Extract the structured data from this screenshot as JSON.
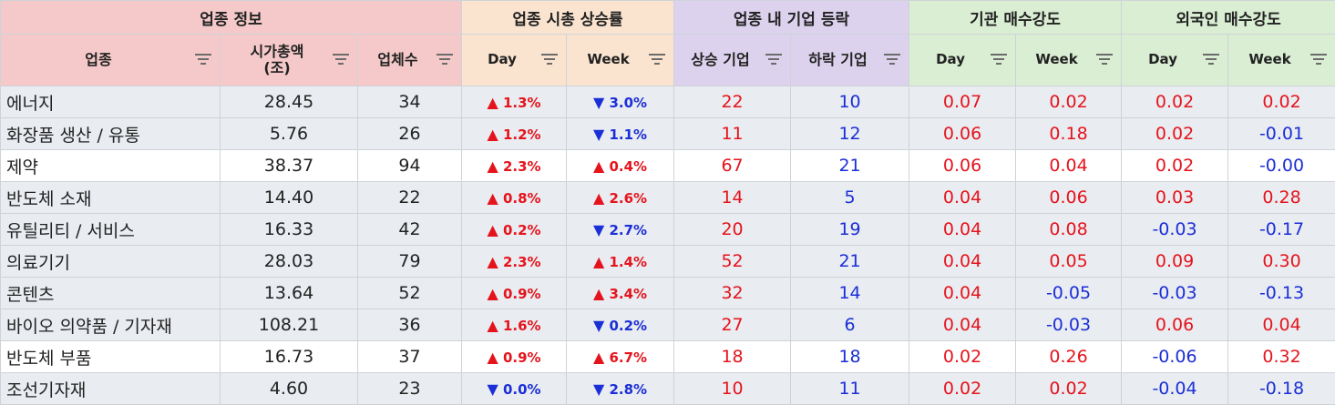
{
  "groups": {
    "sector_info": "업종 정보",
    "market_cap_change": "업종 시총 상승률",
    "company_moves": "업종 내 기업 등락",
    "inst_strength": "기관 매수강도",
    "foreign_strength": "외국인 매수강도"
  },
  "columns": {
    "sector": "업종",
    "market_cap": "시가총액\n(조)",
    "company_count": "업체수",
    "day": "Day",
    "week": "Week",
    "rising": "상승 기업",
    "falling": "하락 기업"
  },
  "symbols": {
    "up": "▲",
    "down": "▼"
  },
  "colors": {
    "group_info": "#f5c9c9",
    "group_cap": "#fbe4cf",
    "group_moves": "#dcd2ee",
    "group_strength": "#daeed4",
    "up": "#e5141c",
    "down": "#1b2fd6"
  },
  "rows": [
    {
      "name": "에너지",
      "cap": "28.45",
      "count": "34",
      "day_dir": "up",
      "day": "1.3%",
      "week_dir": "down",
      "week": "3.0%",
      "rise": "22",
      "fall": "10",
      "inst_day": "0.07",
      "inst_week": "0.02",
      "for_day": "0.02",
      "for_week": "0.02",
      "shade": true
    },
    {
      "name": "화장품 생산 / 유통",
      "cap": "5.76",
      "count": "26",
      "day_dir": "up",
      "day": "1.2%",
      "week_dir": "down",
      "week": "1.1%",
      "rise": "11",
      "fall": "12",
      "inst_day": "0.06",
      "inst_week": "0.18",
      "for_day": "0.02",
      "for_week": "-0.01",
      "shade": true
    },
    {
      "name": "제약",
      "cap": "38.37",
      "count": "94",
      "day_dir": "up",
      "day": "2.3%",
      "week_dir": "up",
      "week": "0.4%",
      "rise": "67",
      "fall": "21",
      "inst_day": "0.06",
      "inst_week": "0.04",
      "for_day": "0.02",
      "for_week": "-0.00",
      "shade": false
    },
    {
      "name": "반도체 소재",
      "cap": "14.40",
      "count": "22",
      "day_dir": "up",
      "day": "0.8%",
      "week_dir": "up",
      "week": "2.6%",
      "rise": "14",
      "fall": "5",
      "inst_day": "0.04",
      "inst_week": "0.06",
      "for_day": "0.03",
      "for_week": "0.28",
      "shade": true
    },
    {
      "name": "유틸리티 / 서비스",
      "cap": "16.33",
      "count": "42",
      "day_dir": "up",
      "day": "0.2%",
      "week_dir": "down",
      "week": "2.7%",
      "rise": "20",
      "fall": "19",
      "inst_day": "0.04",
      "inst_week": "0.08",
      "for_day": "-0.03",
      "for_week": "-0.17",
      "shade": true
    },
    {
      "name": "의료기기",
      "cap": "28.03",
      "count": "79",
      "day_dir": "up",
      "day": "2.3%",
      "week_dir": "up",
      "week": "1.4%",
      "rise": "52",
      "fall": "21",
      "inst_day": "0.04",
      "inst_week": "0.05",
      "for_day": "0.09",
      "for_week": "0.30",
      "shade": true
    },
    {
      "name": "콘텐츠",
      "cap": "13.64",
      "count": "52",
      "day_dir": "up",
      "day": "0.9%",
      "week_dir": "up",
      "week": "3.4%",
      "rise": "32",
      "fall": "14",
      "inst_day": "0.04",
      "inst_week": "-0.05",
      "for_day": "-0.03",
      "for_week": "-0.13",
      "shade": true
    },
    {
      "name": "바이오 의약품 / 기자재",
      "cap": "108.21",
      "count": "36",
      "day_dir": "up",
      "day": "1.6%",
      "week_dir": "down",
      "week": "0.2%",
      "rise": "27",
      "fall": "6",
      "inst_day": "0.04",
      "inst_week": "-0.03",
      "for_day": "0.06",
      "for_week": "0.04",
      "shade": true
    },
    {
      "name": "반도체 부품",
      "cap": "16.73",
      "count": "37",
      "day_dir": "up",
      "day": "0.9%",
      "week_dir": "up",
      "week": "6.7%",
      "rise": "18",
      "fall": "18",
      "inst_day": "0.02",
      "inst_week": "0.26",
      "for_day": "-0.06",
      "for_week": "0.32",
      "shade": false
    },
    {
      "name": "조선기자재",
      "cap": "4.60",
      "count": "23",
      "day_dir": "down",
      "day": "0.0%",
      "week_dir": "down",
      "week": "2.8%",
      "rise": "10",
      "fall": "11",
      "inst_day": "0.02",
      "inst_week": "0.02",
      "for_day": "-0.04",
      "for_week": "-0.18",
      "shade": true
    }
  ]
}
